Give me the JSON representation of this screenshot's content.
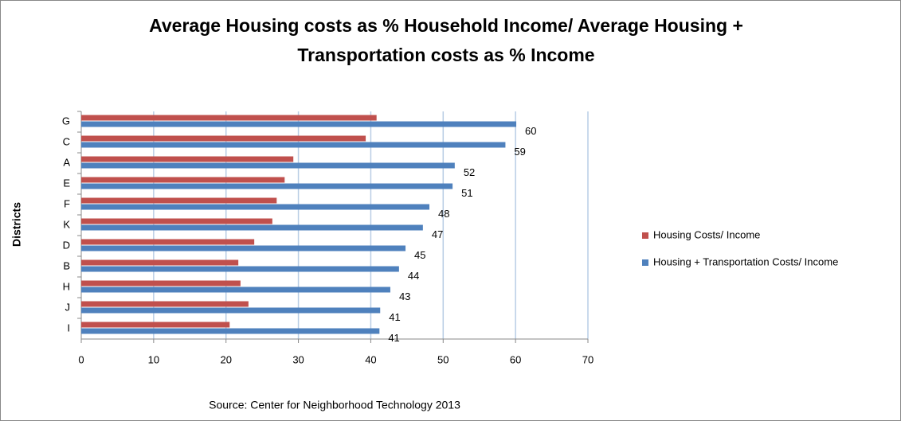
{
  "chart_data": {
    "type": "hbar",
    "title": [
      "Average Housing costs as % Household Income/ Average Housing +",
      "Transportation costs as % Income"
    ],
    "y_label": "Districts",
    "source": "Source: Center for Neighborhood Technology 2013",
    "categories": [
      "G",
      "C",
      "A",
      "E",
      "F",
      "K",
      "D",
      "B",
      "H",
      "J",
      "I"
    ],
    "series": [
      {
        "name": "Housing Costs/ Income",
        "color": "#c0504d",
        "values": [
          40.8,
          39.3,
          29.3,
          28.1,
          27.0,
          26.4,
          23.9,
          21.7,
          22.0,
          23.1,
          20.5
        ]
      },
      {
        "name": "Housing + Transportation Costs/ Income",
        "color": "#4f81bd",
        "values": [
          60.1,
          58.6,
          51.6,
          51.3,
          48.1,
          47.2,
          44.8,
          43.9,
          42.7,
          41.3,
          41.2
        ],
        "value_labels": [
          "60",
          "59",
          "52",
          "51",
          "48",
          "47",
          "45",
          "44",
          "43",
          "41",
          "41"
        ]
      }
    ],
    "xlim": [
      0,
      70
    ],
    "xticks": [
      0,
      10,
      20,
      30,
      40,
      50,
      60,
      70
    ],
    "grid": true,
    "legend": "right"
  }
}
